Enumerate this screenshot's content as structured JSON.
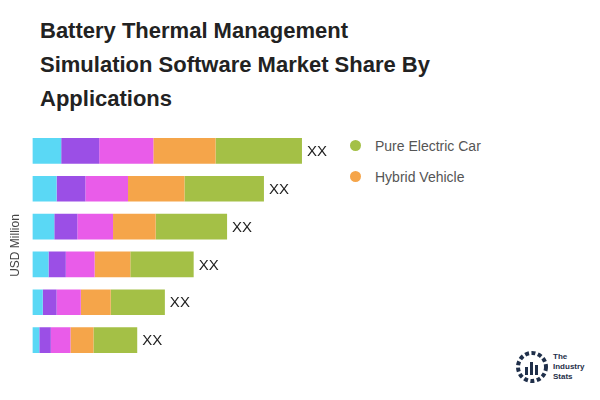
{
  "chart_data": {
    "type": "bar",
    "orientation": "horizontal",
    "stacked": true,
    "title": [
      "Battery Thermal Management",
      "Simulation Software Market Share By",
      "Applications"
    ],
    "y_label": "USD Million",
    "categories": [
      null,
      null,
      null,
      null,
      null,
      null
    ],
    "series": [
      {
        "color": "#5ad8f5",
        "values": [
          25,
          21,
          19,
          14,
          9,
          6
        ]
      },
      {
        "color": "#9b4fe6",
        "values": [
          33,
          25,
          20,
          15,
          12,
          10
        ]
      },
      {
        "color": "#e95ce9",
        "values": [
          47,
          37,
          31,
          25,
          21,
          17
        ]
      },
      {
        "name": "Hybrid Vehicle",
        "color": "#f5a54a",
        "values": [
          54,
          49,
          37,
          31,
          26,
          20
        ]
      },
      {
        "name": "Pure Electric Car",
        "color": "#a4c046",
        "values": [
          75,
          69,
          62,
          55,
          47,
          38
        ]
      }
    ],
    "bar_labels": [
      "XX",
      "XX",
      "XX",
      "XX",
      "XX",
      "XX"
    ],
    "legend": "right",
    "grid": false,
    "tick_labels": false,
    "logo": "The Industry Stats"
  }
}
